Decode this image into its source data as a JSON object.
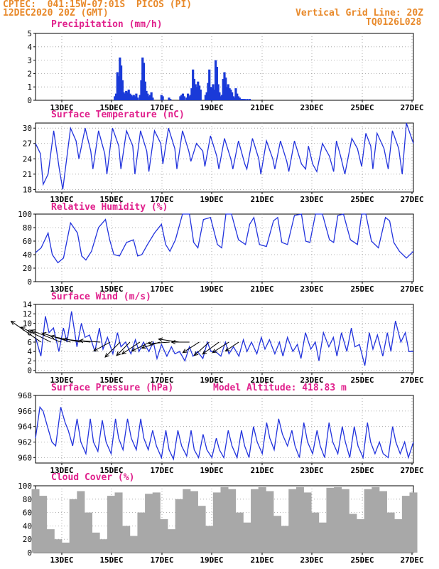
{
  "header": {
    "line1": "CPTEC:  041:15W-07:01S  PICOS (PI)",
    "line2": "12DEC2020 20Z (GMT)",
    "grid_note": "Vertical Grid Line: 20Z",
    "run_id": "TQ0126L028"
  },
  "model_altitude": "Model Altitude: 418.83 m",
  "x_labels": [
    "13DEC",
    "15DEC",
    "17DEC",
    "19DEC",
    "21DEC",
    "23DEC",
    "25DEC",
    "27DEC"
  ],
  "colors": {
    "header": "#e8892a",
    "title": "#e0208c",
    "line": "#2233dd",
    "bar": "#1a3ad8",
    "cloud": "#a8a8a8",
    "grid": "#9a9a9a"
  },
  "chart_data": [
    {
      "type": "bar",
      "title": "Precipitation (mm/h)",
      "ylim": [
        0,
        5
      ],
      "yticks": [
        0,
        1,
        2,
        3,
        4,
        5
      ],
      "x": [
        6.3,
        6.4,
        6.5,
        6.6,
        6.7,
        6.8,
        6.9,
        7.0,
        7.1,
        7.2,
        7.3,
        7.4,
        7.5,
        7.6,
        7.7,
        7.8,
        7.9,
        8.0,
        8.1,
        8.3,
        8.4,
        8.5,
        8.6,
        8.7,
        8.8,
        8.9,
        9.0,
        9.1,
        9.2,
        9.3,
        10.0,
        10.1,
        10.6,
        10.7,
        11.5,
        11.6,
        11.7,
        11.8,
        12.0,
        12.1,
        12.2,
        12.3,
        12.4,
        12.5,
        12.6,
        12.7,
        12.8,
        12.9,
        13.0,
        13.1,
        13.5,
        13.6,
        13.7,
        13.8,
        13.9,
        14.0,
        14.1,
        14.2,
        14.3,
        14.4,
        14.5,
        14.6,
        14.7,
        14.8,
        14.9,
        15.0,
        15.1,
        15.2,
        15.3,
        15.4,
        15.5,
        15.6,
        15.7,
        15.8,
        15.9,
        16.0,
        16.1,
        16.2,
        16.3,
        16.4,
        16.5,
        16.6,
        16.8,
        17.0
      ],
      "values": [
        0.3,
        0.5,
        2.1,
        1.8,
        3.2,
        2.6,
        1.5,
        0.6,
        0.5,
        0.7,
        0.6,
        0.8,
        0.5,
        0.4,
        0.3,
        0.4,
        0.3,
        0.5,
        0.2,
        0.4,
        1.5,
        3.2,
        2.8,
        1.4,
        0.7,
        0.5,
        0.3,
        0.4,
        0.6,
        0.2,
        0.4,
        0.3,
        0.2,
        0.1,
        0.3,
        0.4,
        0.5,
        0.3,
        0.2,
        0.5,
        0.3,
        0.4,
        0.9,
        2.3,
        1.6,
        1.2,
        1.0,
        1.4,
        1.1,
        0.8,
        0.4,
        0.6,
        1.3,
        2.3,
        1.0,
        0.9,
        1.2,
        0.8,
        3.0,
        2.5,
        1.2,
        0.6,
        0.3,
        0.4,
        1.6,
        2.1,
        1.7,
        1.0,
        1.2,
        0.9,
        0.8,
        0.6,
        0.3,
        0.2,
        0.9,
        0.5,
        0.3,
        0.2,
        0.1,
        0.1,
        0.1,
        0.1,
        0.1,
        0.1
      ]
    },
    {
      "type": "line",
      "title": "Surface Temperature (nC)",
      "ylim": [
        17.5,
        31
      ],
      "yticks": [
        18,
        21,
        24,
        27,
        30
      ],
      "x": [
        0.0,
        0.35,
        0.55,
        0.9,
        1.3,
        1.7,
        1.95,
        2.5,
        2.9,
        3.1,
        3.55,
        3.95,
        4.1,
        4.5,
        4.95,
        5.1,
        5.5,
        5.95,
        6.1,
        6.5,
        6.95,
        7.1,
        7.5,
        7.95,
        8.1,
        8.5,
        8.95,
        9.1,
        9.5,
        9.95,
        10.1,
        10.5,
        10.95,
        11.1,
        11.5,
        11.95,
        12.1,
        12.5,
        12.95,
        13.1,
        13.5,
        13.95,
        14.1,
        14.5,
        14.95,
        15.1,
        15.5,
        15.95,
        16.1,
        16.5,
        16.95,
        17.1,
        17.5,
        17.95,
        18.1,
        18.5,
        19.0,
        19.3,
        19.5,
        19.8,
        20.1,
        20.5,
        21.0,
        21.3,
        21.5,
        21.8,
        22.1,
        22.6,
        23.0,
        23.3,
        23.6,
        23.95,
        24.1,
        24.4,
        24.9,
        25.2,
        25.5,
        25.95,
        26.2,
        26.5,
        27.0
      ],
      "values": [
        27,
        25,
        19,
        21,
        29.5,
        22,
        18,
        30,
        27.5,
        24,
        30,
        25.5,
        22,
        29.5,
        25,
        21,
        30,
        26.5,
        22,
        29.5,
        26.5,
        21,
        29.5,
        25.5,
        21.5,
        29.5,
        27,
        23,
        30,
        26,
        22,
        29.5,
        25.5,
        23.5,
        27,
        25.5,
        22.5,
        28.5,
        24.5,
        22,
        28,
        24,
        22,
        27.5,
        23,
        22,
        28,
        24,
        21,
        27.5,
        24,
        22,
        27.5,
        23.5,
        21.5,
        27.5,
        23,
        22,
        26.5,
        23,
        21.5,
        27,
        24.5,
        21.5,
        27.5,
        24.5,
        21,
        28,
        26,
        22.5,
        29,
        26.5,
        22,
        29,
        26,
        22,
        29.5,
        26,
        21,
        31,
        27
      ]
    },
    {
      "type": "line",
      "title": "Relative Humidity (%)",
      "ylim": [
        0,
        100
      ],
      "yticks": [
        0,
        20,
        40,
        60,
        80,
        100
      ],
      "x": [
        0.0,
        0.4,
        0.9,
        1.2,
        1.6,
        2.0,
        2.5,
        3.0,
        3.3,
        3.6,
        4.0,
        4.5,
        5.0,
        5.3,
        5.6,
        6.0,
        6.5,
        7.0,
        7.3,
        7.6,
        8.0,
        8.5,
        9.0,
        9.3,
        9.6,
        10.0,
        10.5,
        11.0,
        11.3,
        11.6,
        12.0,
        12.5,
        13.0,
        13.3,
        13.6,
        14.0,
        14.5,
        15.0,
        15.3,
        15.6,
        16.0,
        16.5,
        17.0,
        17.3,
        17.6,
        18.0,
        18.5,
        19.0,
        19.3,
        19.6,
        20.0,
        20.5,
        21.0,
        21.3,
        21.6,
        22.0,
        22.5,
        23.0,
        23.3,
        23.6,
        24.0,
        24.5,
        25.0,
        25.3,
        25.6,
        26.0,
        26.5,
        27.0
      ],
      "values": [
        43,
        50,
        72,
        40,
        28,
        35,
        87,
        72,
        38,
        32,
        45,
        80,
        92,
        62,
        40,
        38,
        58,
        62,
        38,
        40,
        55,
        72,
        85,
        55,
        45,
        62,
        100,
        100,
        58,
        50,
        92,
        95,
        55,
        50,
        100,
        100,
        62,
        55,
        85,
        95,
        55,
        52,
        90,
        95,
        58,
        55,
        98,
        100,
        60,
        58,
        100,
        100,
        62,
        58,
        98,
        100,
        62,
        55,
        100,
        100,
        60,
        50,
        95,
        90,
        58,
        45,
        35,
        45
      ]
    },
    {
      "type": "line",
      "title": "Surface Wind (m/s)",
      "ylim": [
        -0.5,
        14
      ],
      "yticks": [
        0,
        2,
        4,
        6,
        8,
        10,
        12,
        14
      ],
      "x": [
        0.0,
        0.3,
        0.55,
        0.75,
        1.0,
        1.3,
        1.55,
        1.75,
        2.0,
        2.3,
        2.55,
        2.75,
        3.0,
        3.3,
        3.55,
        3.75,
        4.0,
        4.3,
        4.55,
        4.75,
        5.0,
        5.3,
        5.55,
        5.75,
        6.0,
        6.3,
        6.55,
        6.75,
        7.0,
        7.3,
        7.55,
        7.75,
        8.0,
        8.3,
        8.55,
        8.75,
        9.0,
        9.3,
        9.55,
        9.75,
        10.0,
        10.3,
        10.55,
        10.75,
        11.0,
        11.3,
        11.55,
        11.75,
        12.0,
        12.3,
        12.55,
        12.75,
        13.0,
        13.3,
        13.55,
        13.75,
        14.0,
        14.3,
        14.55,
        14.75,
        15.0,
        15.3,
        15.55,
        15.75,
        16.0,
        16.3,
        16.55,
        16.75,
        17.0,
        17.3,
        17.55,
        17.75,
        18.0,
        18.3,
        18.55,
        18.75,
        19.0,
        19.3,
        19.55,
        19.75,
        20.0,
        20.3,
        20.55,
        20.75,
        21.0
      ],
      "values": [
        7,
        3,
        11.5,
        8,
        9,
        4,
        9,
        6,
        12.5,
        5,
        10,
        7,
        7.5,
        4,
        9,
        4.5,
        7,
        3.5,
        8,
        5,
        6,
        3.5,
        6.5,
        4,
        6,
        4,
        6,
        2.5,
        5.5,
        3,
        5,
        3.5,
        4,
        2,
        5,
        3,
        4,
        2.5,
        6,
        4,
        4,
        3,
        6,
        3.5,
        5,
        3,
        6.5,
        4,
        6,
        3.5,
        7,
        4.5,
        6.5,
        3.5,
        6,
        3,
        7,
        4,
        5.5,
        2.5,
        8,
        4.5,
        6,
        2,
        8,
        5,
        7,
        3,
        8,
        4,
        9,
        5,
        5.5,
        1,
        8,
        4.5,
        7.5,
        3,
        8,
        4,
        10.5,
        6,
        8,
        4,
        4
      ]
    },
    {
      "type": "line",
      "title": "Surface Pressure (hPa)",
      "ylim": [
        959.3,
        968
      ],
      "yticks": [
        960,
        962,
        964,
        966,
        968
      ],
      "x": [
        0.0,
        0.35,
        0.6,
        0.95,
        1.3,
        1.6,
        2.0,
        2.35,
        2.6,
        2.95,
        3.3,
        3.6,
        4.0,
        4.35,
        4.6,
        4.95,
        5.3,
        5.6,
        6.0,
        6.35,
        6.6,
        6.95,
        7.3,
        7.6,
        8.0,
        8.35,
        8.6,
        8.95,
        9.3,
        9.6,
        10.0,
        10.35,
        10.6,
        10.95,
        11.3,
        11.6,
        12.0,
        12.35,
        12.6,
        12.95,
        13.3,
        13.6,
        14.0,
        14.35,
        14.6,
        14.95,
        15.3,
        15.6,
        16.0,
        16.35,
        16.6,
        16.95,
        17.3,
        17.6,
        18.0,
        18.35,
        18.6,
        18.95,
        19.3,
        19.6,
        20.0,
        20.35,
        20.6,
        20.95,
        21.3,
        21.6,
        22.0,
        22.35,
        22.6,
        22.95,
        23.3,
        23.6,
        24.0,
        24.35,
        24.6,
        24.95,
        25.3,
        25.6,
        26.0,
        26.35,
        26.6,
        26.95,
        27.3,
        27.6,
        28.0,
        28.35,
        28.6,
        28.95,
        29.3,
        29.6,
        30.0
      ],
      "values": [
        962.5,
        966.5,
        966,
        964,
        962,
        961.5,
        966.5,
        964.5,
        963.5,
        961.5,
        965,
        962,
        960.5,
        965,
        962,
        960.8,
        964.8,
        962,
        960.5,
        965,
        962.5,
        961,
        965,
        962.5,
        961,
        965,
        962.5,
        961,
        963.5,
        961.5,
        960,
        963.5,
        961,
        959.8,
        963.5,
        961.5,
        960.2,
        963.5,
        961,
        960,
        963,
        961,
        960,
        962.5,
        961,
        960,
        963.5,
        961.5,
        960,
        963.5,
        961.5,
        960,
        964,
        962,
        960.5,
        964.5,
        962.5,
        961,
        965,
        963,
        961.5,
        963.5,
        961.5,
        960,
        964.5,
        962,
        960.5,
        963.5,
        961.5,
        960,
        964.5,
        962,
        960.5,
        964,
        962,
        960,
        964,
        961.5,
        960,
        964.5,
        962,
        960.5,
        962,
        960.5,
        960,
        964,
        962,
        960.5,
        962,
        960,
        962
      ]
    },
    {
      "type": "area",
      "title": "Cloud Cover (%)",
      "ylim": [
        0,
        100
      ],
      "yticks": [
        0,
        20,
        40,
        60,
        80,
        100
      ],
      "x": [
        0,
        0.3,
        0.6,
        0.9,
        1.2,
        1.5,
        1.8,
        2.1,
        2.4,
        2.7,
        3.0,
        3.3,
        3.6,
        3.9,
        4.2,
        4.5,
        4.8,
        5.1,
        5.4,
        5.7,
        6.0,
        6.3,
        6.6,
        6.9,
        7.2,
        7.5,
        7.8,
        8.1,
        8.4,
        8.7,
        9.0,
        9.3,
        9.6,
        9.9,
        10.2,
        10.5,
        10.8,
        11.1,
        11.4,
        11.7,
        12.0,
        12.3,
        12.6,
        12.9,
        13.2,
        13.5,
        13.8,
        14.1,
        14.4,
        14.7,
        15.0
      ],
      "values": [
        95,
        85,
        35,
        20,
        15,
        80,
        92,
        60,
        30,
        20,
        85,
        90,
        40,
        25,
        60,
        88,
        90,
        50,
        35,
        80,
        95,
        92,
        70,
        40,
        90,
        98,
        95,
        60,
        45,
        95,
        98,
        92,
        55,
        40,
        95,
        98,
        90,
        60,
        45,
        97,
        98,
        95,
        58,
        50,
        95,
        98,
        92,
        60,
        50,
        85,
        90
      ]
    }
  ],
  "wind_arrows": [
    {
      "x": 0.3,
      "u": -1.0,
      "v": 0.7
    },
    {
      "x": 0.85,
      "u": -1.0,
      "v": 0.5
    },
    {
      "x": 1.4,
      "u": -1.0,
      "v": 0.4
    },
    {
      "x": 1.95,
      "u": -0.95,
      "v": 0.3
    },
    {
      "x": 2.5,
      "u": -1.0,
      "v": 0.2
    },
    {
      "x": 3.05,
      "u": -0.9,
      "v": 0.1
    },
    {
      "x": 3.6,
      "u": -0.7,
      "v": 0.05
    },
    {
      "x": 4.15,
      "u": -0.55,
      "v": -0.3
    },
    {
      "x": 4.7,
      "u": -0.5,
      "v": -0.5
    },
    {
      "x": 5.25,
      "u": -0.45,
      "v": -0.45
    },
    {
      "x": 5.8,
      "u": -0.6,
      "v": -0.4
    },
    {
      "x": 6.35,
      "u": -0.6,
      "v": -0.3
    },
    {
      "x": 6.9,
      "u": -0.6,
      "v": -0.2
    },
    {
      "x": 7.45,
      "u": -0.7,
      "v": -0.05
    },
    {
      "x": 8.0,
      "u": -0.7,
      "v": 0.1
    },
    {
      "x": 8.55,
      "u": -0.6,
      "v": 0.0
    },
    {
      "x": 9.1,
      "u": -0.55,
      "v": -0.35
    },
    {
      "x": 9.65,
      "u": -0.5,
      "v": -0.45
    },
    {
      "x": 10.2,
      "u": -0.55,
      "v": -0.4
    },
    {
      "x": 10.75,
      "u": -0.55,
      "v": -0.35
    },
    {
      "x": 11.3,
      "u": -0.45,
      "v": -0.3
    }
  ]
}
